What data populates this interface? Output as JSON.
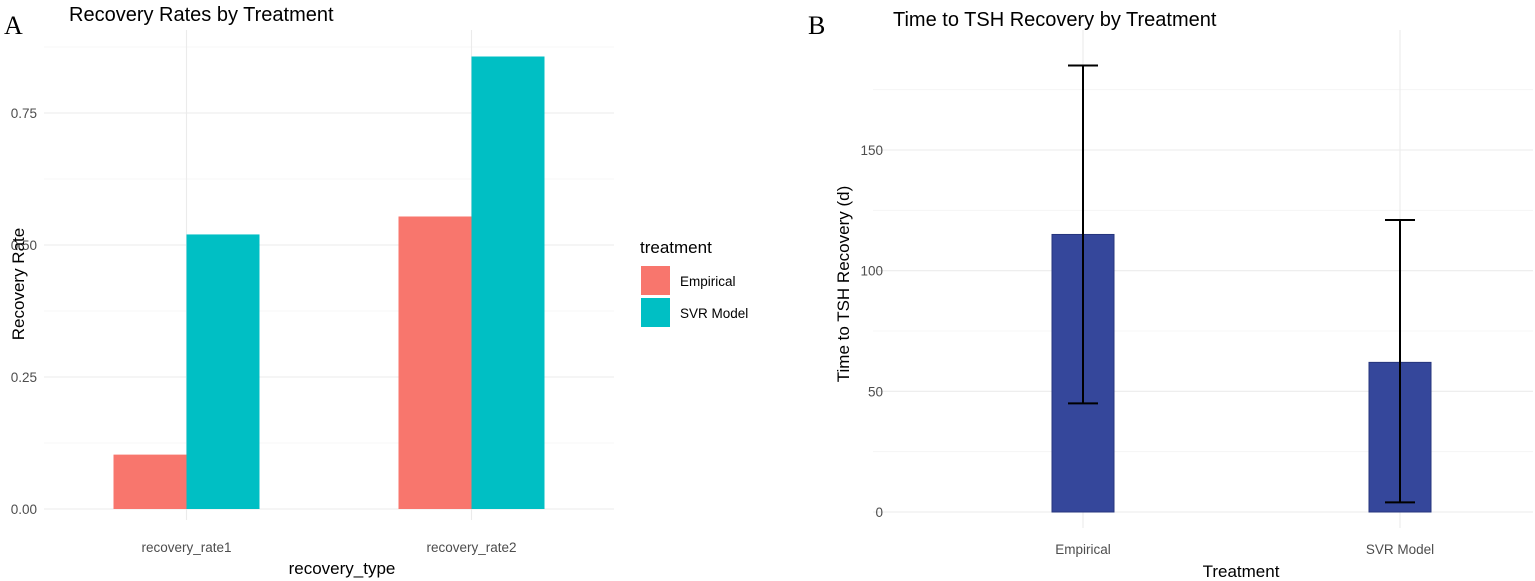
{
  "chart_data": [
    {
      "panel": "A",
      "type": "bar",
      "title": "Recovery Rates by Treatment",
      "xlabel": "recovery_type",
      "ylabel": "Recovery Rate",
      "categories": [
        "recovery_rate1",
        "recovery_rate2"
      ],
      "series": [
        {
          "name": "Empirical",
          "color": "#F8766D",
          "values": [
            0.103,
            0.554
          ]
        },
        {
          "name": "SVR Model",
          "color": "#00BFC4",
          "values": [
            0.52,
            0.857
          ]
        }
      ],
      "ylim": [
        0,
        0.87
      ],
      "yticks": [
        0,
        0.25,
        0.5,
        0.75
      ],
      "ytick_labels": [
        "0.00",
        "0.25",
        "0.50",
        "0.75"
      ],
      "legend": {
        "title": "treatment",
        "position": "right"
      },
      "grid": true
    },
    {
      "panel": "B",
      "type": "bar",
      "title": "Time to TSH Recovery by Treatment",
      "xlabel": "Treatment",
      "ylabel": "Time to TSH Recovery (d)",
      "categories": [
        "Empirical",
        "SVR Model"
      ],
      "values": [
        115,
        62
      ],
      "error_bars": [
        {
          "low": 45,
          "high": 185
        },
        {
          "low": 4,
          "high": 121
        }
      ],
      "bar_color": "#35479B",
      "ylim": [
        0,
        190
      ],
      "yticks": [
        0,
        50,
        100,
        150
      ],
      "ytick_labels": [
        "0",
        "50",
        "100",
        "150"
      ],
      "grid": true
    }
  ]
}
